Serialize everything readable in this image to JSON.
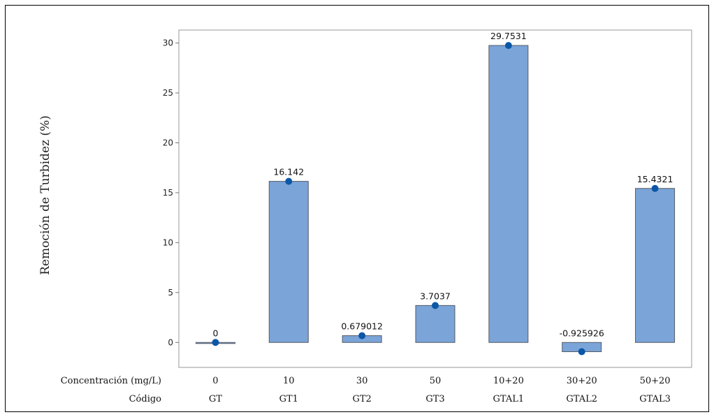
{
  "chart_data": {
    "type": "bar",
    "ylabel": "Remoción de Turbidez (%)",
    "ylim": [
      -2.5,
      31.3
    ],
    "yticks": [
      0,
      5,
      10,
      15,
      20,
      25,
      30
    ],
    "grid": false,
    "colors": {
      "bar_fill": "#7ba4d8",
      "bar_stroke": "#555a66",
      "point": "#0b57a8"
    },
    "row_labels": [
      "Concentración (mg/L)",
      "Código"
    ],
    "categories": [
      "GT",
      "GT1",
      "GT2",
      "GT3",
      "GTAL1",
      "GTAL2",
      "GTAL3"
    ],
    "concentrations": [
      "0",
      "10",
      "30",
      "50",
      "10+20",
      "30+20",
      "50+20"
    ],
    "values": [
      0,
      16.142,
      0.679012,
      3.7037,
      29.7531,
      -0.925926,
      15.4321
    ],
    "value_labels": [
      "0",
      "16.142",
      "0.679012",
      "3.7037",
      "29.7531",
      "-0.925926",
      "15.4321"
    ]
  }
}
